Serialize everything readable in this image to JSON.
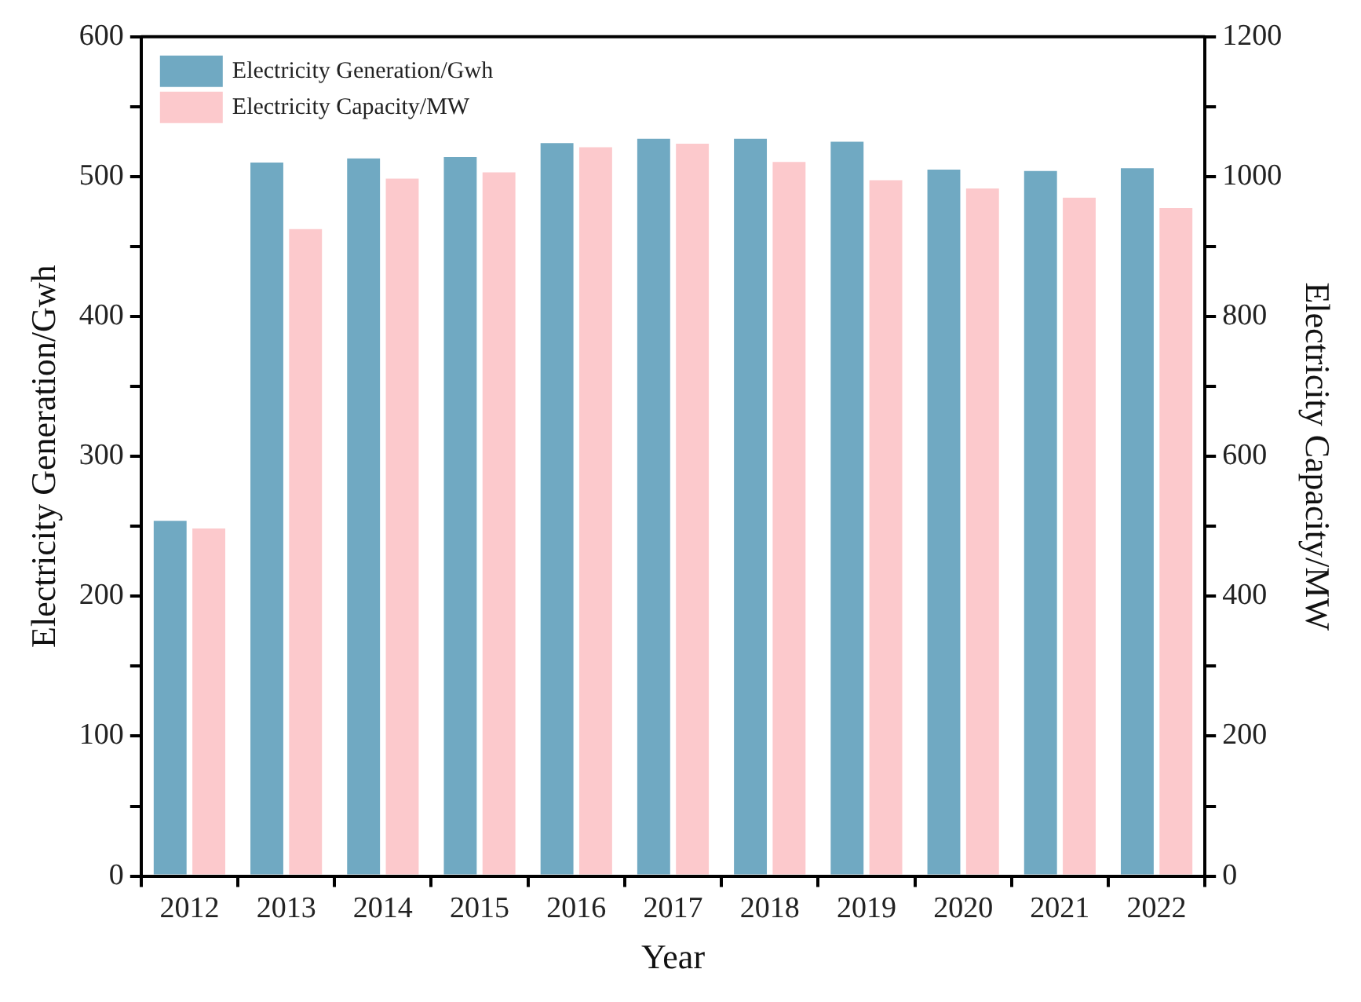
{
  "chart_data": {
    "type": "bar",
    "xlabel": "Year",
    "ylabel": "Electricity Generation/Gwh",
    "y2label": "Electricity Capacity/MW",
    "categories": [
      "2012",
      "2013",
      "2014",
      "2015",
      "2016",
      "2017",
      "2018",
      "2019",
      "2020",
      "2021",
      "2022"
    ],
    "series": [
      {
        "name": "Electricity Generation/Gwh",
        "color": "#70a9c2",
        "values": [
          254,
          510,
          513,
          514,
          524,
          527,
          527,
          525,
          505,
          504,
          506
        ]
      },
      {
        "name": "Electricity Capacity/MW",
        "color": "#fcc9cc",
        "axis": "y2",
        "values": [
          497,
          925,
          997,
          1006,
          1042,
          1047,
          1021,
          995,
          983,
          970,
          955
        ]
      }
    ],
    "ylim": [
      0,
      600
    ],
    "yticks": [
      0,
      {
        "value": 50,
        "label": null
      },
      100,
      {
        "value": 150,
        "label": null
      },
      200,
      {
        "value": 250,
        "label": null
      },
      300,
      {
        "value": 350,
        "label": null
      },
      400,
      {
        "value": 450,
        "label": null
      },
      500,
      {
        "value": 550,
        "label": null
      },
      600
    ],
    "y2lim": [
      0,
      1200
    ],
    "y2ticks": [
      0,
      {
        "value": 100,
        "label": null
      },
      200,
      {
        "value": 300,
        "label": null
      },
      400,
      {
        "value": 500,
        "label": null
      },
      600,
      {
        "value": 700,
        "label": null
      },
      800,
      {
        "value": 900,
        "label": null
      },
      1000,
      {
        "value": 1100,
        "label": null
      },
      1200
    ],
    "grid": false,
    "legend": "top left"
  }
}
